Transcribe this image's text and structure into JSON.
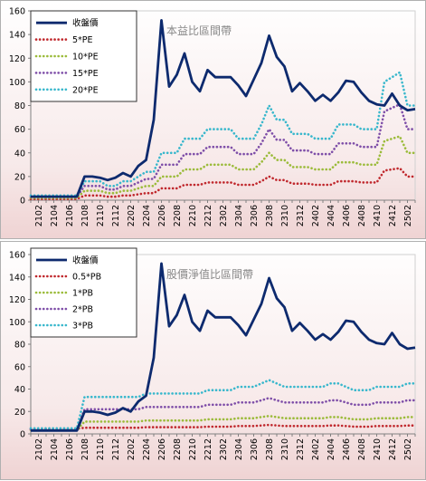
{
  "chart_data": [
    {
      "type": "line",
      "title": "本益比區間帶",
      "yticks": [
        0,
        20,
        40,
        60,
        80,
        100,
        120,
        140,
        160
      ],
      "ylim": [
        0,
        160
      ],
      "categories": [
        "2101",
        "2102",
        "2103",
        "2104",
        "2105",
        "2106",
        "2107",
        "2108",
        "2109",
        "2110",
        "2111",
        "2112",
        "2201",
        "2202",
        "2203",
        "2204",
        "2205",
        "2206",
        "2207",
        "2208",
        "2209",
        "2210",
        "2211",
        "2212",
        "2301",
        "2302",
        "2303",
        "2304",
        "2305",
        "2306",
        "2307",
        "2308",
        "2309",
        "2310",
        "2311",
        "2312",
        "2401",
        "2402",
        "2403",
        "2404",
        "2405",
        "2406",
        "2407",
        "2408",
        "2409",
        "2410",
        "2411",
        "2412",
        "2501",
        "2502",
        "2503"
      ],
      "xtick_labels": [
        "2102",
        "2104",
        "2106",
        "2108",
        "2110",
        "2112",
        "2202",
        "2204",
        "2206",
        "2208",
        "2210",
        "2212",
        "2302",
        "2304",
        "2306",
        "2308",
        "2310",
        "2312",
        "2402",
        "2404",
        "2406",
        "2408",
        "2410",
        "2412",
        "2502"
      ],
      "legend_position": "top-left",
      "series": [
        {
          "name": "收盤價",
          "color": "#0d2a6e",
          "style": "solid",
          "values": [
            3,
            3,
            3,
            3,
            3,
            3,
            3,
            20,
            20,
            19,
            17,
            19,
            23,
            20,
            29,
            34,
            68,
            152,
            96,
            106,
            124,
            100,
            92,
            110,
            104,
            104,
            104,
            97,
            88,
            102,
            116,
            139,
            121,
            113,
            92,
            99,
            92,
            84,
            89,
            84,
            91,
            101,
            100,
            91,
            84,
            81,
            80,
            90,
            80,
            76,
            77
          ]
        },
        {
          "name": "5*PE",
          "color": "#c0282d",
          "style": "dotted",
          "values": [
            1,
            1,
            1,
            1,
            1,
            1,
            1,
            4,
            4,
            4,
            3,
            3,
            4,
            4,
            5,
            6,
            6,
            10,
            10,
            10,
            13,
            13,
            13,
            15,
            15,
            15,
            15,
            13,
            13,
            13,
            16,
            20,
            17,
            17,
            14,
            14,
            14,
            13,
            13,
            13,
            16,
            16,
            16,
            15,
            15,
            15,
            25,
            26,
            27,
            20,
            20
          ]
        },
        {
          "name": "10*PE",
          "color": "#9bbb3a",
          "style": "dotted",
          "values": [
            2,
            2,
            2,
            2,
            2,
            2,
            2,
            8,
            8,
            8,
            6,
            6,
            8,
            8,
            10,
            12,
            12,
            20,
            20,
            20,
            26,
            26,
            26,
            30,
            30,
            30,
            30,
            26,
            26,
            26,
            32,
            40,
            34,
            34,
            28,
            28,
            28,
            26,
            26,
            26,
            32,
            32,
            32,
            30,
            30,
            30,
            50,
            52,
            54,
            40,
            40
          ]
        },
        {
          "name": "15*PE",
          "color": "#7e4ea8",
          "style": "dotted",
          "values": [
            3,
            3,
            3,
            3,
            3,
            3,
            3,
            12,
            12,
            12,
            9,
            9,
            12,
            12,
            15,
            18,
            18,
            30,
            30,
            30,
            39,
            39,
            39,
            45,
            45,
            45,
            45,
            39,
            39,
            39,
            48,
            60,
            51,
            51,
            42,
            42,
            42,
            39,
            39,
            39,
            48,
            48,
            48,
            45,
            45,
            45,
            75,
            78,
            81,
            60,
            60
          ]
        },
        {
          "name": "20*PE",
          "color": "#38b7cc",
          "style": "dotted",
          "values": [
            4,
            4,
            4,
            4,
            4,
            4,
            4,
            16,
            16,
            16,
            12,
            12,
            16,
            16,
            20,
            24,
            24,
            40,
            40,
            40,
            52,
            52,
            52,
            60,
            60,
            60,
            60,
            52,
            52,
            52,
            64,
            80,
            68,
            68,
            56,
            56,
            56,
            52,
            52,
            52,
            64,
            64,
            64,
            60,
            60,
            60,
            100,
            104,
            108,
            80,
            80
          ]
        }
      ]
    },
    {
      "type": "line",
      "title": "股價淨值比區間帶",
      "yticks": [
        0,
        20,
        40,
        60,
        80,
        100,
        120,
        140,
        160
      ],
      "ylim": [
        0,
        160
      ],
      "categories": [
        "2101",
        "2102",
        "2103",
        "2104",
        "2105",
        "2106",
        "2107",
        "2108",
        "2109",
        "2110",
        "2111",
        "2112",
        "2201",
        "2202",
        "2203",
        "2204",
        "2205",
        "2206",
        "2207",
        "2208",
        "2209",
        "2210",
        "2211",
        "2212",
        "2301",
        "2302",
        "2303",
        "2304",
        "2305",
        "2306",
        "2307",
        "2308",
        "2309",
        "2310",
        "2311",
        "2312",
        "2401",
        "2402",
        "2403",
        "2404",
        "2405",
        "2406",
        "2407",
        "2408",
        "2409",
        "2410",
        "2411",
        "2412",
        "2501",
        "2502",
        "2503"
      ],
      "xtick_labels": [
        "2102",
        "2104",
        "2106",
        "2108",
        "2110",
        "2112",
        "2202",
        "2204",
        "2206",
        "2208",
        "2210",
        "2212",
        "2302",
        "2304",
        "2306",
        "2308",
        "2310",
        "2312",
        "2402",
        "2404",
        "2406",
        "2408",
        "2410",
        "2412",
        "2502"
      ],
      "legend_position": "top-left",
      "series": [
        {
          "name": "收盤價",
          "color": "#0d2a6e",
          "style": "solid",
          "values": [
            3,
            3,
            3,
            3,
            3,
            3,
            3,
            20,
            20,
            19,
            17,
            19,
            23,
            20,
            29,
            34,
            68,
            152,
            96,
            106,
            124,
            100,
            92,
            110,
            104,
            104,
            104,
            97,
            88,
            102,
            116,
            139,
            121,
            113,
            92,
            99,
            92,
            84,
            89,
            84,
            91,
            101,
            100,
            91,
            84,
            81,
            80,
            90,
            80,
            76,
            77
          ]
        },
        {
          "name": "0.5*PB",
          "color": "#c0282d",
          "style": "dotted",
          "values": [
            4.5,
            4.5,
            4.5,
            4.5,
            4.5,
            4.5,
            4.5,
            5.5,
            5.5,
            5.5,
            5.5,
            5.5,
            5.5,
            5.5,
            5.5,
            6,
            6,
            6,
            6,
            6,
            6,
            6,
            6,
            6.5,
            6.5,
            6.5,
            6.5,
            7,
            7,
            7,
            7.5,
            8,
            7.5,
            7,
            7,
            7,
            7,
            7,
            7,
            7.5,
            7.5,
            7,
            6.5,
            6.5,
            6.5,
            7,
            7,
            7,
            7,
            7.5,
            7.5
          ]
        },
        {
          "name": "1*PB",
          "color": "#9bbb3a",
          "style": "dotted",
          "values": [
            3.5,
            3.5,
            3.5,
            3.5,
            3.5,
            3.5,
            3.5,
            11,
            11,
            11,
            11,
            11,
            11,
            11,
            11,
            12,
            12,
            12,
            12,
            12,
            12,
            12,
            12,
            13,
            13,
            13,
            13,
            14,
            14,
            14,
            15,
            16,
            15,
            14,
            14,
            14,
            14,
            14,
            14,
            15,
            15,
            14,
            13,
            13,
            13,
            14,
            14,
            14,
            14,
            15,
            15
          ]
        },
        {
          "name": "2*PB",
          "color": "#7e4ea8",
          "style": "dotted",
          "values": [
            4,
            4,
            4,
            4,
            4,
            4,
            4,
            22,
            22,
            22,
            22,
            22,
            22,
            22,
            22,
            24,
            24,
            24,
            24,
            24,
            24,
            24,
            24,
            26,
            26,
            26,
            26,
            28,
            28,
            28,
            30,
            32,
            30,
            28,
            28,
            28,
            28,
            28,
            28,
            30,
            30,
            28,
            26,
            26,
            26,
            28,
            28,
            28,
            28,
            30,
            30
          ]
        },
        {
          "name": "3*PB",
          "color": "#38b7cc",
          "style": "dotted",
          "values": [
            5,
            5,
            5,
            5,
            5,
            5,
            5,
            33,
            33,
            33,
            33,
            33,
            33,
            33,
            33,
            36,
            36,
            36,
            36,
            36,
            36,
            36,
            36,
            39,
            39,
            39,
            39,
            42,
            42,
            42,
            45,
            48,
            45,
            42,
            42,
            42,
            42,
            42,
            42,
            45,
            45,
            42,
            39,
            39,
            39,
            42,
            42,
            42,
            42,
            45,
            45
          ]
        }
      ]
    }
  ]
}
